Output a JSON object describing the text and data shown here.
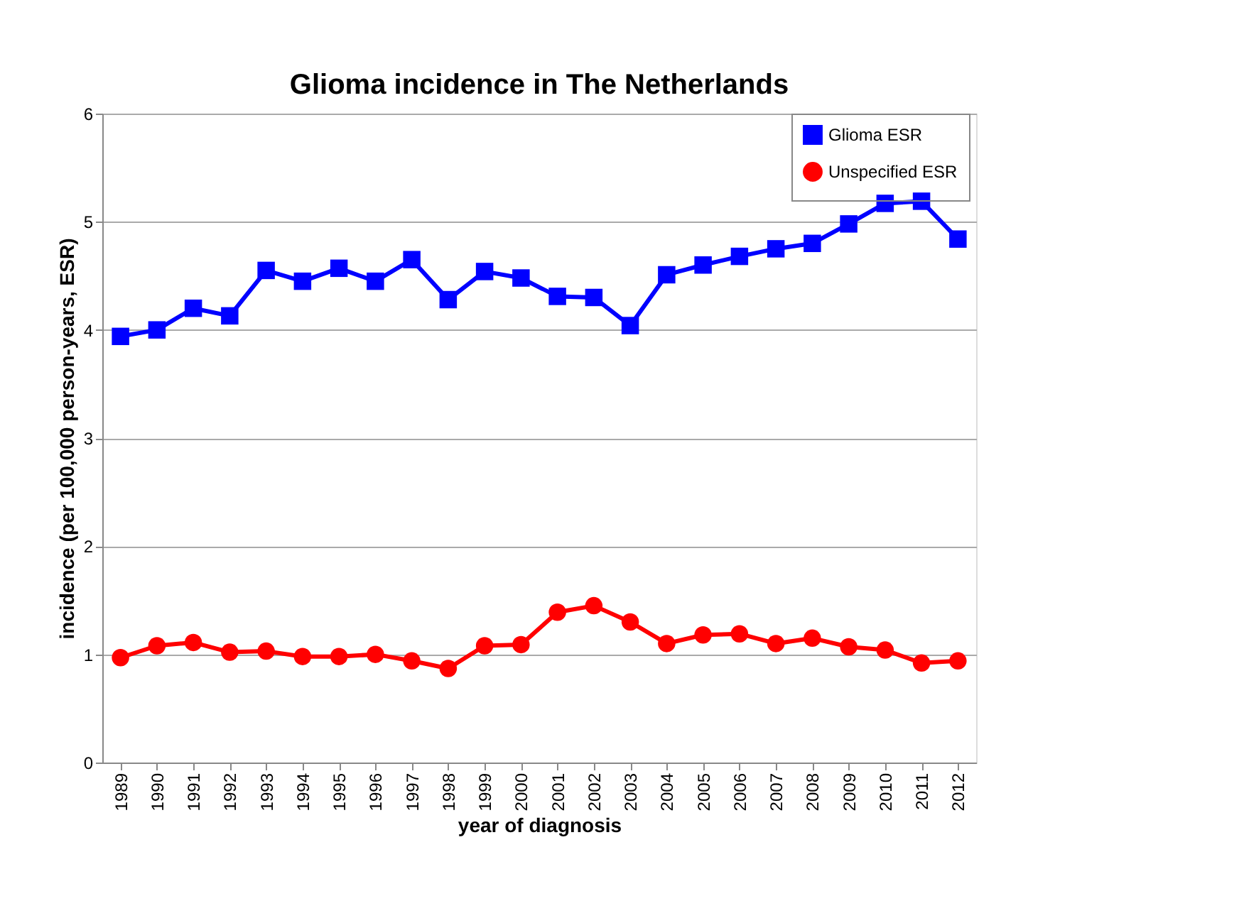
{
  "chart_data": {
    "type": "line",
    "title": "Glioma incidence in The Netherlands",
    "xlabel": "year of diagnosis",
    "ylabel": "incidence (per 100,000 person-years, ESR)",
    "categories": [
      "1989",
      "1990",
      "1991",
      "1992",
      "1993",
      "1994",
      "1995",
      "1996",
      "1997",
      "1998",
      "1999",
      "2000",
      "2001",
      "2002",
      "2003",
      "2004",
      "2005",
      "2006",
      "2007",
      "2008",
      "2009",
      "2010",
      "2011",
      "2012"
    ],
    "series": [
      {
        "name": "Glioma ESR",
        "color": "#0000ff",
        "marker": "square",
        "values": [
          3.94,
          4.0,
          4.2,
          4.13,
          4.55,
          4.45,
          4.57,
          4.45,
          4.65,
          4.28,
          4.54,
          4.48,
          4.31,
          4.3,
          4.04,
          4.51,
          4.6,
          4.68,
          4.75,
          4.8,
          4.98,
          5.17,
          5.19,
          4.84
        ]
      },
      {
        "name": "Unspecified ESR",
        "color": "#ff0000",
        "marker": "circle",
        "values": [
          0.97,
          1.08,
          1.11,
          1.02,
          1.03,
          0.98,
          0.98,
          1.0,
          0.94,
          0.87,
          1.08,
          1.09,
          1.39,
          1.45,
          1.3,
          1.1,
          1.18,
          1.19,
          1.1,
          1.15,
          1.07,
          1.04,
          0.92,
          0.94
        ]
      }
    ],
    "ylim": [
      0,
      6
    ],
    "yticks": [
      0,
      1,
      2,
      3,
      4,
      5,
      6
    ],
    "grid": "y",
    "legend": "right",
    "line_style": "solid"
  }
}
